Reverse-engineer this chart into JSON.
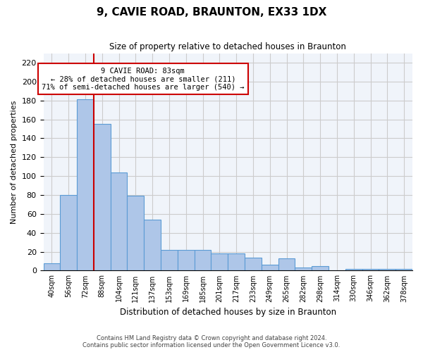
{
  "title": "9, CAVIE ROAD, BRAUNTON, EX33 1DX",
  "subtitle": "Size of property relative to detached houses in Braunton",
  "xlabel": "Distribution of detached houses by size in Braunton",
  "ylabel": "Number of detached properties",
  "bar_values": [
    8,
    80,
    181,
    155,
    104,
    79,
    54,
    22,
    22,
    22,
    18,
    18,
    14,
    6,
    13,
    3,
    5,
    0,
    2,
    2,
    2,
    2
  ],
  "bar_labels": [
    "40sqm",
    "56sqm",
    "72sqm",
    "88sqm",
    "104sqm",
    "121sqm",
    "137sqm",
    "153sqm",
    "169sqm",
    "185sqm",
    "201sqm",
    "217sqm",
    "233sqm",
    "249sqm",
    "265sqm",
    "282sqm",
    "298sqm",
    "314sqm",
    "330sqm",
    "346sqm",
    "362sqm",
    "378sqm"
  ],
  "bar_color": "#aec6e8",
  "bar_edge_color": "#5b9bd5",
  "annotation_text_line1": "9 CAVIE ROAD: 83sqm",
  "annotation_text_line2": "← 28% of detached houses are smaller (211)",
  "annotation_text_line3": "71% of semi-detached houses are larger (540) →",
  "annotation_box_color": "#ffffff",
  "annotation_box_edge_color": "#cc0000",
  "vline_color": "#cc0000",
  "vline_x": 2.5,
  "ylim": [
    0,
    230
  ],
  "yticks": [
    0,
    20,
    40,
    60,
    80,
    100,
    120,
    140,
    160,
    180,
    200,
    220
  ],
  "grid_color": "#cccccc",
  "bg_color": "#f0f4fa",
  "footer_line1": "Contains HM Land Registry data © Crown copyright and database right 2024.",
  "footer_line2": "Contains public sector information licensed under the Open Government Licence v3.0."
}
